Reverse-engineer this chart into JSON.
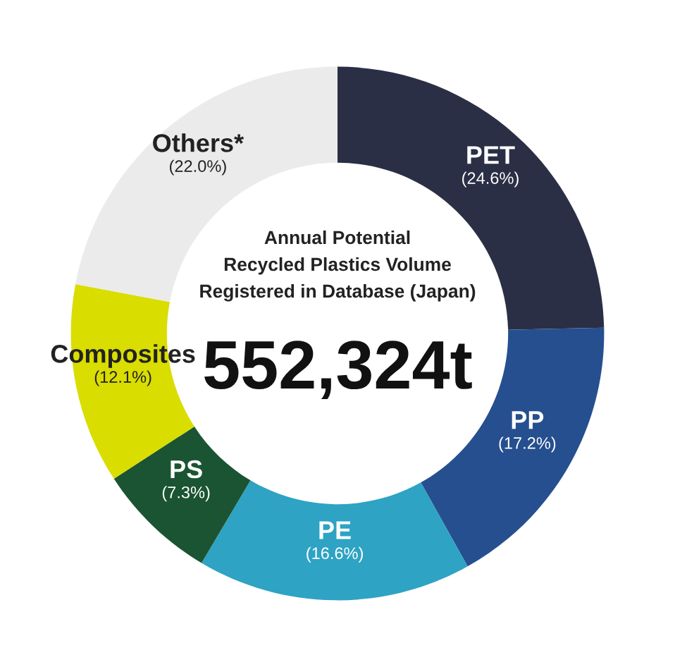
{
  "chart_data": {
    "type": "donut",
    "title": "Annual Potential\nRecycled Plastics Volume\nRegistered in Database (Japan)",
    "annotations": [
      "552,324t"
    ],
    "categories": [
      "PET",
      "PP",
      "PE",
      "PS",
      "Composites",
      "Others*"
    ],
    "values": [
      24.6,
      17.2,
      16.6,
      7.3,
      12.1,
      22.0
    ],
    "value_labels": [
      "(24.6%)",
      "(17.2%)",
      "(16.6%)",
      "(7.3%)",
      "(12.1%)",
      "(22.0%)"
    ],
    "colors": [
      "#2b2f45",
      "#264f8f",
      "#2ea3c3",
      "#1b5432",
      "#d9dd00",
      "#ebebeb"
    ],
    "legend": false
  }
}
